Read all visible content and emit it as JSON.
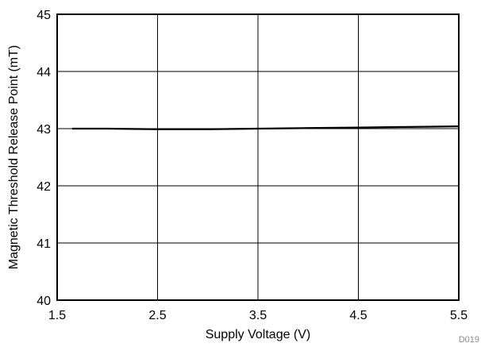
{
  "chart_data": {
    "type": "line",
    "xlabel": "Supply Voltage (V)",
    "ylabel": "Magnetic Threshold Release Point (mT)",
    "xlim": [
      1.5,
      5.5
    ],
    "ylim": [
      40,
      45
    ],
    "x_ticks": [
      1.5,
      2.5,
      3.5,
      4.5,
      5.5
    ],
    "y_ticks": [
      40,
      41,
      42,
      43,
      44,
      45
    ],
    "x_tick_labels": [
      "1.5",
      "2.5",
      "3.5",
      "4.5",
      "5.5"
    ],
    "y_tick_labels": [
      "40",
      "41",
      "42",
      "43",
      "44",
      "45"
    ],
    "grid": true,
    "series": [
      {
        "x": [
          1.65,
          2.0,
          2.5,
          3.0,
          3.5,
          4.0,
          4.5,
          5.0,
          5.5
        ],
        "y": [
          43.0,
          43.0,
          42.99,
          42.99,
          43.0,
          43.01,
          43.02,
          43.03,
          43.04
        ]
      }
    ],
    "annotation": "D019",
    "colors": {
      "line": "#000000",
      "grid": "#000000",
      "frame": "#000000"
    }
  }
}
